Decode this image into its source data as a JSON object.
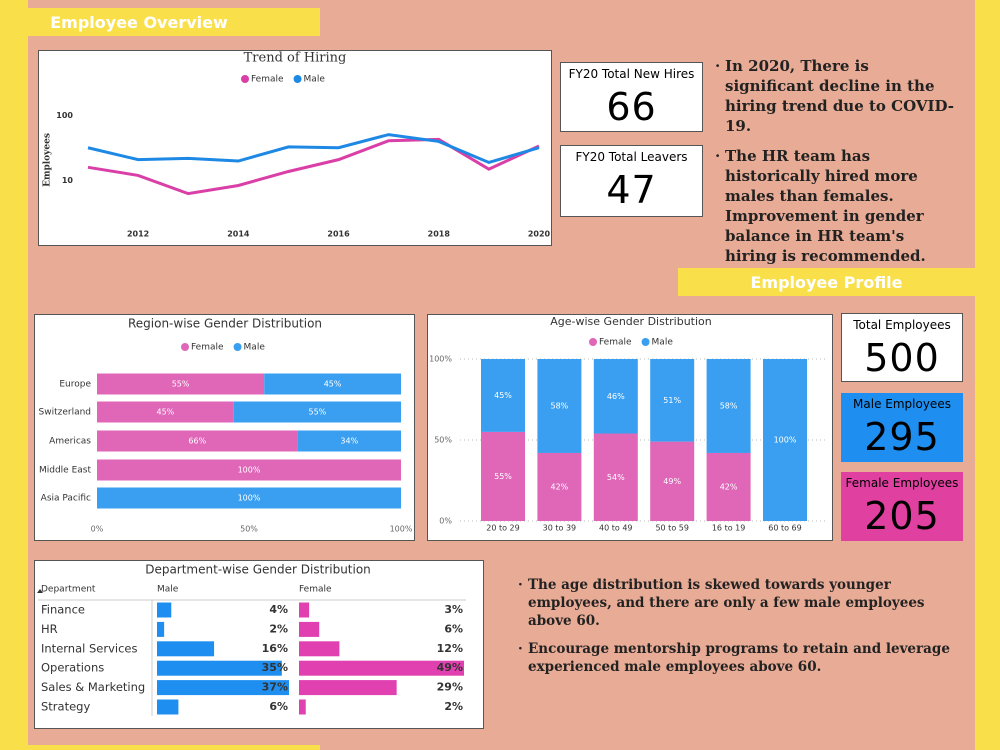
{
  "header": {
    "overview": "Employee Overview",
    "profile": "Employee Profile"
  },
  "chart_data": [
    {
      "type": "line",
      "title": "Trend of Hiring",
      "y_label": "Employees",
      "log_scale": true,
      "x": [
        2011,
        2012,
        2013,
        2014,
        2015,
        2016,
        2017,
        2018,
        2019,
        2020
      ],
      "xlim": [
        2011,
        2020
      ],
      "xticks": [
        2012,
        2014,
        2016,
        2018,
        2020
      ],
      "ylim": [
        2,
        180
      ],
      "yticks": [
        10,
        100
      ],
      "series": [
        {
          "name": "Female",
          "color": "#d93fa6",
          "values": [
            16,
            12,
            6.3,
            8.4,
            13.8,
            21,
            41,
            43,
            15,
            34
          ]
        },
        {
          "name": "Male",
          "color": "#1e88e5",
          "values": [
            32,
            21,
            22,
            20,
            33,
            32,
            51,
            40,
            19,
            32
          ]
        }
      ]
    },
    {
      "type": "hbar-stacked",
      "title": "Region-wise Gender Distribution",
      "categories": [
        "Europe",
        "Switzerland",
        "Americas",
        "Middle East",
        "Asia Pacific"
      ],
      "xlim": [
        0,
        100
      ],
      "xticks": [
        {
          "value": 0,
          "label": "0%"
        },
        {
          "value": 50,
          "label": "50%"
        },
        {
          "value": 100,
          "label": "100%"
        }
      ],
      "series": [
        {
          "name": "Female",
          "color": "#e066b8",
          "values": [
            55,
            45,
            66,
            100,
            null
          ],
          "value_labels": [
            "55%",
            "45%",
            "66%",
            "100%",
            null
          ]
        },
        {
          "name": "Male",
          "color": "#3a9ff0",
          "values": [
            45,
            55,
            34,
            null,
            100
          ],
          "value_labels": [
            "45%",
            "55%",
            "34%",
            null,
            "100%"
          ]
        }
      ]
    },
    {
      "type": "vbar-stacked",
      "title": "Age-wise Gender Distribution",
      "categories": [
        "20 to 29",
        "30 to 39",
        "40 to 49",
        "50 to 59",
        "16 to 19",
        "60 to 69"
      ],
      "ylim": [
        0,
        100
      ],
      "yticks": [
        {
          "value": 0,
          "label": "0%"
        },
        {
          "value": 50,
          "label": "50%"
        },
        {
          "value": 100,
          "label": "100%"
        }
      ],
      "grid": true,
      "series": [
        {
          "name": "Female",
          "color": "#e066b8",
          "values": [
            55,
            42,
            54,
            49,
            42,
            null
          ],
          "value_labels": [
            "55%",
            "42%",
            "54%",
            "49%",
            "42%",
            null
          ]
        },
        {
          "name": "Male",
          "color": "#3a9ff0",
          "values": [
            45,
            58,
            46,
            51,
            58,
            100
          ],
          "value_labels": [
            "45%",
            "58%",
            "46%",
            "51%",
            "58%",
            "100%"
          ]
        }
      ]
    },
    {
      "type": "bar-table",
      "title": "Department-wise Gender Distribution",
      "category_header": "Department",
      "categories": [
        "Finance",
        "HR",
        "Internal Services",
        "Operations",
        "Sales & Marketing",
        "Strategy"
      ],
      "series": [
        {
          "name": "Male",
          "color": "#1e8ff0",
          "values": [
            4,
            2,
            16,
            35,
            37,
            6
          ],
          "value_labels": [
            "4%",
            "2%",
            "16%",
            "35%",
            "37%",
            "6%"
          ]
        },
        {
          "name": "Female",
          "color": "#e040b0",
          "values": [
            3,
            6,
            12,
            49,
            29,
            2
          ],
          "value_labels": [
            "3%",
            "6%",
            "12%",
            "49%",
            "29%",
            "2%"
          ]
        }
      ]
    }
  ],
  "cards": [
    {
      "label": "FY20 Total New Hires",
      "value": 66
    },
    {
      "label": "FY20 Total Leavers",
      "value": 47
    },
    {
      "label": "Total Employees",
      "value": 500
    },
    {
      "label": "Male Employees",
      "value": 295
    },
    {
      "label": "Female Employees",
      "value": 205
    }
  ],
  "notes_top": [
    "In 2020, There is significant decline in the hiring trend due to COVID-19.",
    "The HR team has historically hired more males than females. Improvement in gender balance in HR team's hiring is recommended."
  ],
  "notes_bottom": [
    "The age distribution is skewed towards younger employees, and there are only a few male employees above 60.",
    "Encourage mentorship programs to retain and leverage experienced male employees above 60."
  ]
}
